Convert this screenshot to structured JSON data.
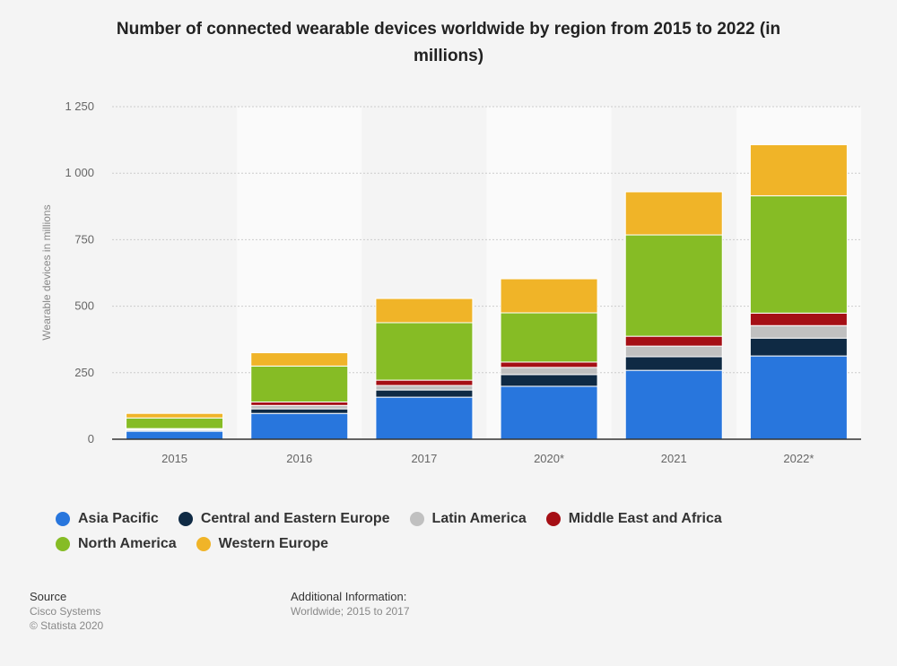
{
  "chart_data": {
    "type": "stacked_bar",
    "title": "Number of connected wearable devices worldwide by region from 2015 to 2022 (in millions)",
    "ylabel": "Wearable devices in millions",
    "categories": [
      "2015",
      "2016",
      "2017",
      "2020*",
      "2021",
      "2022*"
    ],
    "series": [
      {
        "name": "Asia Pacific",
        "color": "#2876dd",
        "values": [
          30,
          97,
          158,
          199,
          259,
          313
        ]
      },
      {
        "name": "Central and Eastern Europe",
        "color": "#0f2a44",
        "values": [
          4,
          17,
          27,
          44,
          51,
          67
        ]
      },
      {
        "name": "Latin America",
        "color": "#c0c0c0",
        "values": [
          3,
          13,
          17,
          27,
          40,
          47
        ]
      },
      {
        "name": "Middle East and Africa",
        "color": "#a50f15",
        "values": [
          3,
          13,
          20,
          20,
          37,
          47
        ]
      },
      {
        "name": "North America",
        "color": "#86bc25",
        "values": [
          40,
          135,
          216,
          185,
          381,
          441
        ]
      },
      {
        "name": "Western Europe",
        "color": "#f0b428",
        "values": [
          17,
          50,
          91,
          128,
          162,
          192
        ]
      }
    ],
    "ylim": [
      0,
      1250
    ],
    "yticks": [
      0,
      250,
      500,
      750,
      {
        "value": 1000,
        "label": "1 000"
      },
      {
        "value": 1250,
        "label": "1 250"
      }
    ],
    "grid": true,
    "source": {
      "heading": "Source",
      "lines": [
        "Cisco Systems",
        "© Statista 2020"
      ]
    },
    "additional_info": {
      "heading": "Additional Information:",
      "text": "Worldwide; 2015 to 2017"
    }
  }
}
